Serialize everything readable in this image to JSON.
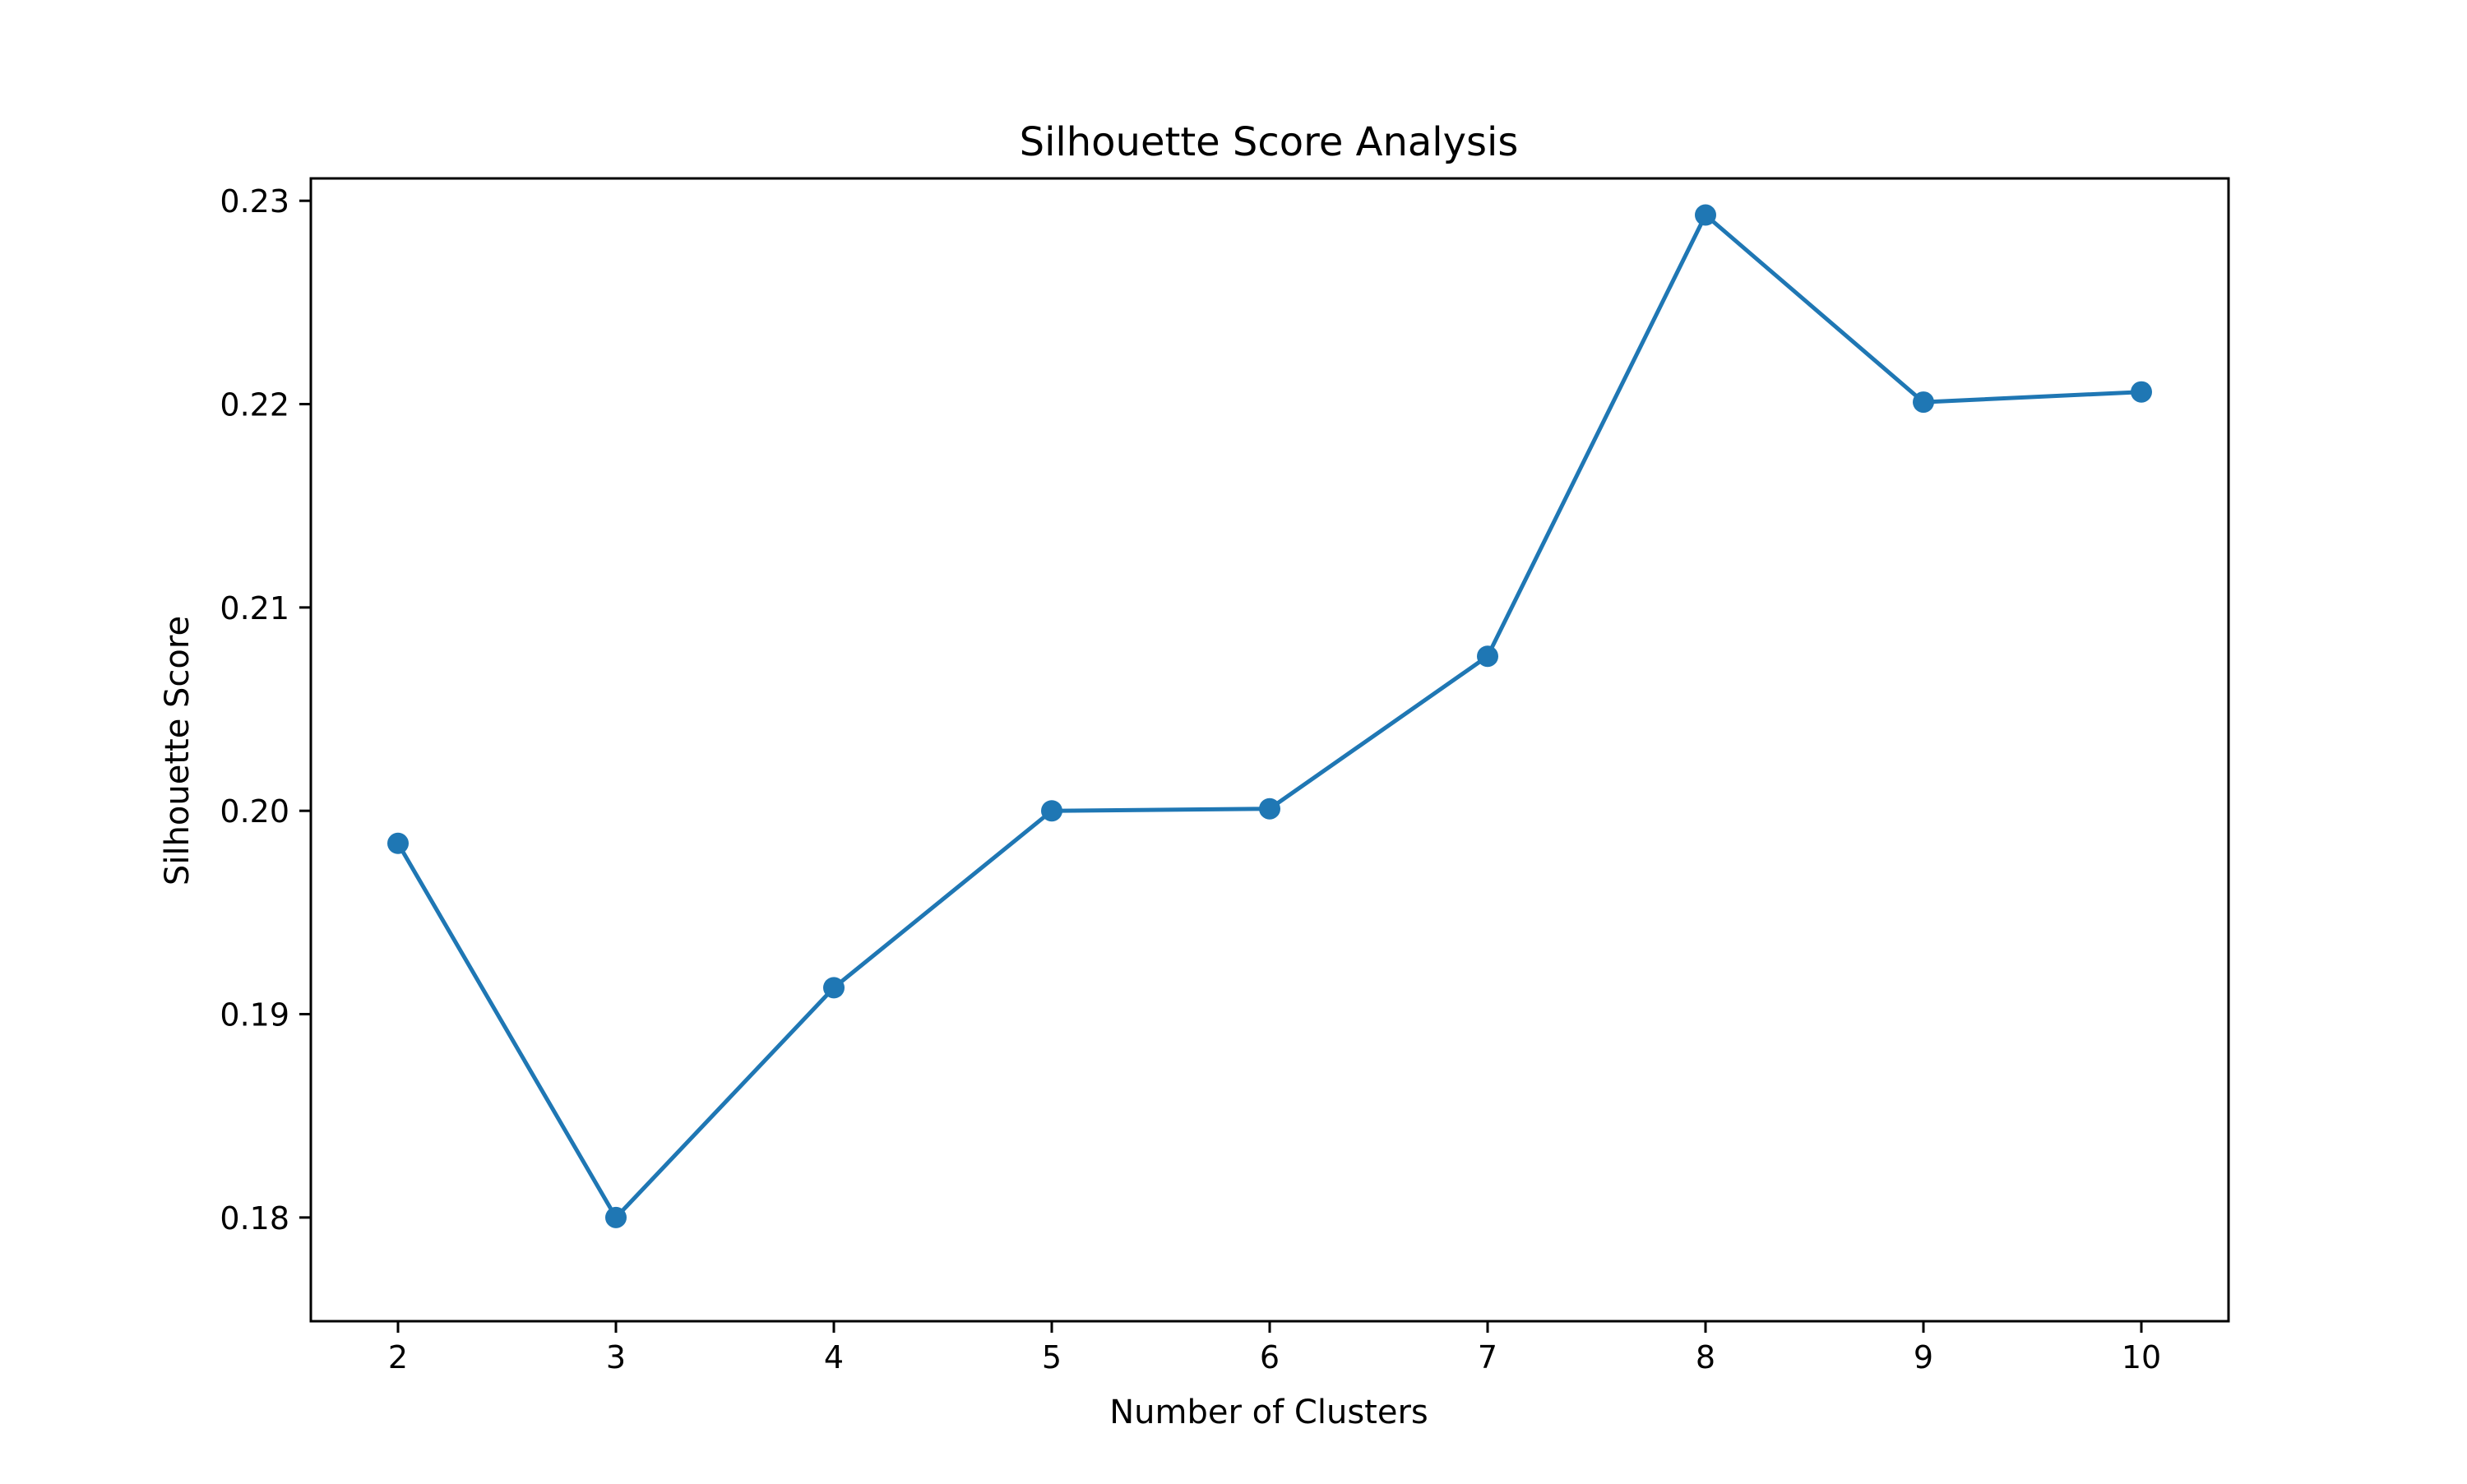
{
  "chart_data": {
    "type": "line",
    "title": "Silhouette Score Analysis",
    "xlabel": "Number of Clusters",
    "ylabel": "Silhouette Score",
    "x": [
      2,
      3,
      4,
      5,
      6,
      7,
      8,
      9,
      10
    ],
    "series": [
      {
        "values": [
          0.1984,
          0.18,
          0.1913,
          0.2,
          0.2001,
          0.2076,
          0.2293,
          0.2201,
          0.2206
        ],
        "color": "#1f77b4",
        "marker": "circle"
      }
    ],
    "xlim": [
      1.6,
      10.4
    ],
    "ylim": [
      0.1749,
      0.2311
    ],
    "xticks": [
      2,
      3,
      4,
      5,
      6,
      7,
      8,
      9,
      10
    ],
    "yticks": [
      0.18,
      0.19,
      0.2,
      0.21,
      0.22,
      0.23
    ],
    "ytick_labels": [
      "0.18",
      "0.19",
      "0.20",
      "0.21",
      "0.22",
      "0.23"
    ],
    "grid": false,
    "legend": "none"
  }
}
